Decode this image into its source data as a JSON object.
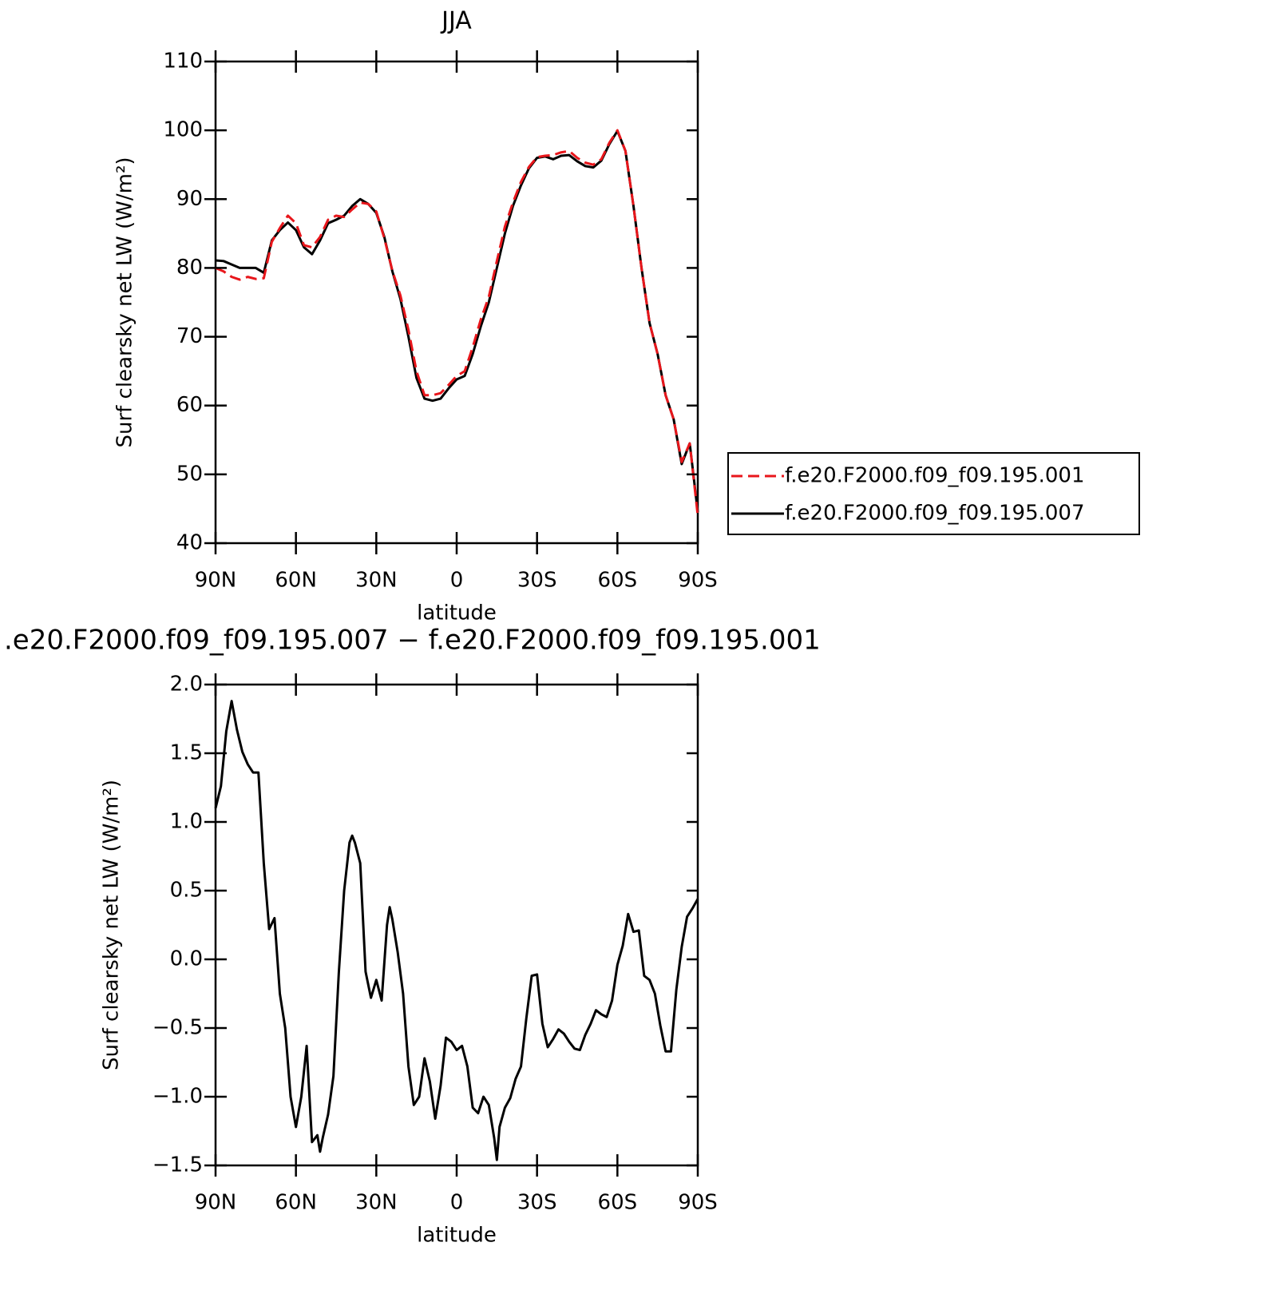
{
  "chart_data": [
    {
      "type": "line",
      "title": "JJA",
      "xlabel": "latitude",
      "ylabel": "Surf clearsky net LW (W/m²)",
      "xlim": [
        90,
        -90
      ],
      "ylim": [
        40,
        110
      ],
      "xticks": [
        {
          "value": 90,
          "label": "90N"
        },
        {
          "value": 60,
          "label": "60N"
        },
        {
          "value": 30,
          "label": "30N"
        },
        0,
        {
          "value": -30,
          "label": "30S"
        },
        {
          "value": -60,
          "label": "60S"
        },
        {
          "value": -90,
          "label": "90S"
        }
      ],
      "yticks": [
        40,
        50,
        60,
        70,
        80,
        90,
        100,
        110
      ],
      "legend": "right",
      "x": [
        90,
        87,
        84,
        81,
        78,
        75,
        72,
        69,
        66,
        63,
        60,
        57,
        54,
        51,
        48,
        45,
        42,
        39,
        36,
        33,
        30,
        27,
        24,
        21,
        18,
        15,
        12,
        9,
        6,
        3,
        0,
        -3,
        -6,
        -9,
        -12,
        -15,
        -18,
        -21,
        -24,
        -27,
        -30,
        -33,
        -36,
        -39,
        -42,
        -45,
        -48,
        -51,
        -54,
        -57,
        -60,
        -63,
        -66,
        -69,
        -72,
        -75,
        -78,
        -81,
        -84,
        -87,
        -90
      ],
      "series": [
        {
          "name": "f.e20.F2000.f09_f09.195.001",
          "color": "#e8161b",
          "linestyle": "dashed",
          "values": [
            80.0,
            79.5,
            78.7,
            78.3,
            78.7,
            78.4,
            78.5,
            83.8,
            85.8,
            87.6,
            86.5,
            83.3,
            83.0,
            84.5,
            87.0,
            87.6,
            87.4,
            88.5,
            89.5,
            89.3,
            88.2,
            84.3,
            79.6,
            76.0,
            71.0,
            65.0,
            61.5,
            61.5,
            61.8,
            63.0,
            64.3,
            65.0,
            68.5,
            72.5,
            75.8,
            81.0,
            86.0,
            89.5,
            92.5,
            94.7,
            96.1,
            96.3,
            96.4,
            96.8,
            97.0,
            96.0,
            95.3,
            95.0,
            95.8,
            98.2,
            100.0,
            97.0,
            89.0,
            80.0,
            72.0,
            67.5,
            61.5,
            58.0,
            51.8,
            54.5,
            44.0
          ]
        },
        {
          "name": "f.e20.F2000.f09_f09.195.007",
          "color": "#000000",
          "linestyle": "solid",
          "values": [
            81.1,
            81.0,
            80.5,
            80.0,
            80.0,
            80.0,
            79.3,
            84.0,
            85.5,
            86.6,
            85.5,
            83.0,
            82.0,
            84.0,
            86.5,
            87.0,
            87.6,
            89.0,
            90.0,
            89.3,
            88.0,
            84.5,
            79.5,
            75.5,
            70.0,
            64.0,
            61.0,
            60.7,
            61.0,
            62.5,
            63.8,
            64.3,
            67.5,
            71.5,
            75.0,
            80.0,
            85.0,
            89.0,
            92.0,
            94.5,
            96.0,
            96.2,
            95.8,
            96.3,
            96.4,
            95.5,
            94.8,
            94.6,
            95.6,
            98.0,
            99.9,
            97.0,
            89.0,
            80.0,
            72.0,
            67.5,
            61.5,
            58.0,
            51.5,
            54.5,
            44.5
          ]
        }
      ]
    },
    {
      "type": "line",
      "title": ".e20.F2000.f09_f09.195.007 − f.e20.F2000.f09_f09.195.001",
      "xlabel": "latitude",
      "ylabel": "Surf clearsky net LW (W/m²)",
      "xlim": [
        90,
        -90
      ],
      "ylim": [
        -1.5,
        2.0
      ],
      "xticks": [
        {
          "value": 90,
          "label": "90N"
        },
        {
          "value": 60,
          "label": "60N"
        },
        {
          "value": 30,
          "label": "30N"
        },
        0,
        {
          "value": -30,
          "label": "30S"
        },
        {
          "value": -60,
          "label": "60S"
        },
        {
          "value": -90,
          "label": "90S"
        }
      ],
      "yticks": [
        {
          "value": -1.5,
          "label": "−1.5"
        },
        {
          "value": -1.0,
          "label": "−1.0"
        },
        {
          "value": -0.5,
          "label": "−0.5"
        },
        {
          "value": 0,
          "label": "0.0"
        },
        0.5,
        {
          "value": 1.0,
          "label": "1.0"
        },
        1.5,
        {
          "value": 2.0,
          "label": "2.0"
        }
      ],
      "x": [
        90,
        88,
        86,
        84,
        82,
        80,
        78,
        76,
        74,
        72,
        70,
        68,
        66,
        64,
        62,
        60,
        58,
        56,
        54,
        52,
        51,
        50,
        48,
        46,
        44,
        42,
        40,
        39,
        38,
        36,
        34,
        32,
        30,
        28,
        26,
        25,
        24,
        22,
        20,
        18,
        16,
        14,
        12,
        10,
        8,
        6,
        4,
        2,
        0,
        -2,
        -4,
        -6,
        -8,
        -10,
        -12,
        -14,
        -15,
        -16,
        -18,
        -20,
        -22,
        -24,
        -26,
        -28,
        -30,
        -32,
        -34,
        -36,
        -38,
        -40,
        -42,
        -44,
        -46,
        -48,
        -50,
        -52,
        -54,
        -56,
        -58,
        -60,
        -62,
        -64,
        -66,
        -68,
        -70,
        -72,
        -74,
        -76,
        -78,
        -80,
        -82,
        -84,
        -86,
        -88,
        -90
      ],
      "series": [
        {
          "color": "#000000",
          "linestyle": "solid",
          "values": [
            1.1,
            1.26,
            1.66,
            1.88,
            1.67,
            1.51,
            1.42,
            1.36,
            1.36,
            0.7,
            0.22,
            0.3,
            -0.25,
            -0.5,
            -1.0,
            -1.22,
            -1.0,
            -0.63,
            -1.33,
            -1.28,
            -1.4,
            -1.3,
            -1.13,
            -0.85,
            -0.1,
            0.5,
            0.85,
            0.9,
            0.85,
            0.7,
            -0.09,
            -0.28,
            -0.15,
            -0.3,
            0.25,
            0.38,
            0.29,
            0.05,
            -0.25,
            -0.78,
            -1.06,
            -1.0,
            -0.72,
            -0.89,
            -1.16,
            -0.92,
            -0.57,
            -0.6,
            -0.66,
            -0.63,
            -0.78,
            -1.08,
            -1.12,
            -1.0,
            -1.06,
            -1.3,
            -1.46,
            -1.22,
            -1.08,
            -1.01,
            -0.87,
            -0.78,
            -0.43,
            -0.12,
            -0.11,
            -0.47,
            -0.64,
            -0.58,
            -0.51,
            -0.54,
            -0.6,
            -0.65,
            -0.66,
            -0.55,
            -0.47,
            -0.37,
            -0.4,
            -0.42,
            -0.3,
            -0.04,
            0.1,
            0.33,
            0.2,
            0.21,
            -0.12,
            -0.15,
            -0.25,
            -0.48,
            -0.67,
            -0.67,
            -0.22,
            0.09,
            0.31,
            0.37,
            0.44
          ]
        }
      ]
    }
  ]
}
